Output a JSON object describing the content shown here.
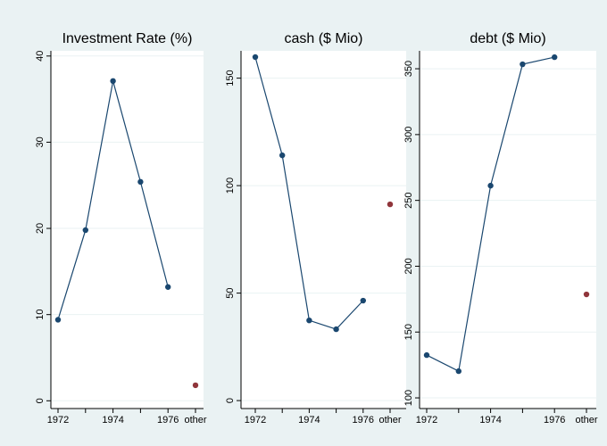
{
  "chart_data": [
    {
      "type": "line",
      "title": "Investment Rate (%)",
      "categories": [
        "1972",
        null,
        "1974",
        null,
        "1976",
        "other"
      ],
      "series": [
        {
          "color": "#1a476f",
          "values": [
            9.4,
            19.8,
            37.1,
            25.4,
            13.2,
            null
          ]
        },
        {
          "color": "#90353b",
          "values": [
            null,
            null,
            null,
            null,
            null,
            1.8
          ]
        }
      ],
      "ylim": [
        -0.9,
        40.6
      ],
      "yticks": [
        0,
        10,
        20,
        30,
        40
      ],
      "grid": true
    },
    {
      "type": "line",
      "title": "cash ($ Mio)",
      "categories": [
        "1972",
        null,
        "1974",
        null,
        "1976",
        "other"
      ],
      "series": [
        {
          "color": "#1a476f",
          "values": [
            159.8,
            114.1,
            37.3,
            33.2,
            46.5,
            null
          ]
        },
        {
          "color": "#90353b",
          "values": [
            null,
            null,
            null,
            null,
            null,
            91.3
          ]
        }
      ],
      "ylim": [
        -3.7,
        162.7
      ],
      "yticks": [
        0,
        50,
        100,
        150
      ],
      "grid": true
    },
    {
      "type": "line",
      "title": "debt ($ Mio)",
      "categories": [
        "1972",
        null,
        "1974",
        null,
        "1976",
        "other"
      ],
      "series": [
        {
          "color": "#1a476f",
          "values": [
            132.5,
            120.3,
            261.2,
            353.4,
            358.8,
            null
          ]
        },
        {
          "color": "#90353b",
          "values": [
            null,
            null,
            null,
            null,
            null,
            178.6
          ]
        }
      ],
      "ylim": [
        91.9,
        363.6
      ],
      "yticks": [
        100,
        150,
        200,
        250,
        300,
        350
      ],
      "grid": true
    }
  ]
}
